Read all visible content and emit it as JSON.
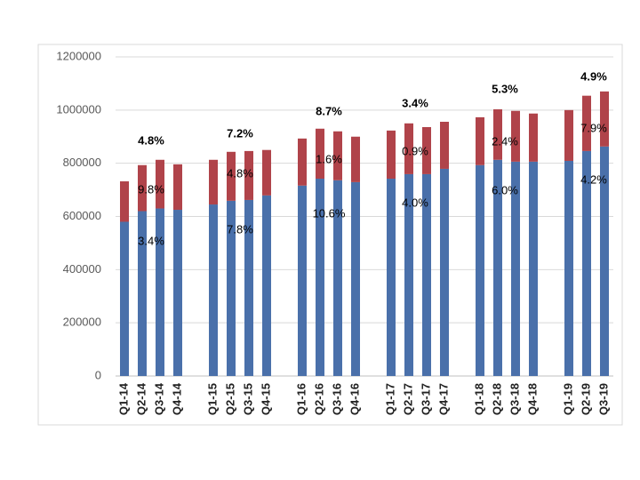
{
  "chart_data": {
    "type": "stacked_bar",
    "categories": [
      "Q1-14",
      "Q2-14",
      "Q3-14",
      "Q4-14",
      null,
      "Q1-15",
      "Q2-15",
      "Q3-15",
      "Q4-15",
      null,
      "Q1-16",
      "Q2-16",
      "Q3-16",
      "Q4-16",
      null,
      "Q1-17",
      "Q2-17",
      "Q3-17",
      "Q4-17",
      null,
      "Q1-18",
      "Q2-18",
      "Q3-18",
      "Q4-18",
      null,
      "Q1-19",
      "Q2-19",
      "Q3-19"
    ],
    "series": [
      {
        "color": "#4a70aa",
        "values": [
          580000,
          620000,
          630000,
          625000,
          null,
          645000,
          659000,
          662000,
          679000,
          null,
          716000,
          742000,
          736000,
          729000,
          null,
          742000,
          759000,
          759000,
          779000,
          null,
          793000,
          813000,
          806000,
          806000,
          null,
          809000,
          846000,
          863000
        ]
      },
      {
        "color": "#b0434a",
        "values": [
          152000,
          173000,
          183000,
          171000,
          null,
          168000,
          184000,
          184000,
          171000,
          null,
          177000,
          188000,
          184000,
          171000,
          null,
          181000,
          191000,
          177000,
          177000,
          null,
          180000,
          190000,
          191000,
          181000,
          null,
          191000,
          208000,
          207000
        ]
      }
    ],
    "ylim": [
      0,
      1200000
    ],
    "yticks": [
      0,
      200000,
      400000,
      600000,
      800000,
      1000000,
      1200000
    ],
    "grid": true,
    "growth_labels": [
      "4.8%",
      "7.2%",
      "8.7%",
      "3.4%",
      "5.3%",
      "4.9%"
    ],
    "top_segment_labels": [
      "9.8%",
      "4.8%",
      "1.6%",
      "0.9%",
      "2.4%",
      "7.9%"
    ],
    "bottom_segment_labels": [
      "3.4%",
      "7.8%",
      "10.6%",
      "4.0%",
      "6.0%",
      "4.2%"
    ]
  }
}
